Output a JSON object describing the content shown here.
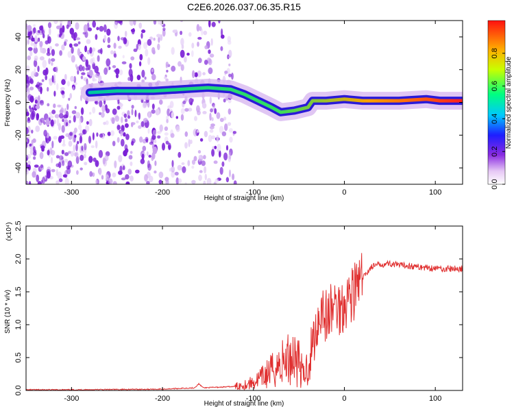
{
  "figure": {
    "title": "C2E6.2026.037.06.35.R15"
  },
  "chart_data": [
    {
      "type": "heatmap",
      "xlabel": "Height of straight line (km)",
      "ylabel": "Frequency (Hz)",
      "xlim": [
        -350,
        130
      ],
      "ylim": [
        -50,
        50
      ],
      "xticks": [
        -300,
        -200,
        -100,
        0,
        100
      ],
      "yticks": [
        -40,
        -20,
        0,
        20,
        40
      ],
      "colorbar": {
        "label": "Normalized spectral amplitude",
        "ticks": [
          0.0,
          0.2,
          0.4,
          0.6,
          0.8
        ],
        "range": [
          0,
          1
        ]
      },
      "ridge": [
        {
          "x": -280,
          "y": 6
        },
        {
          "x": -250,
          "y": 7
        },
        {
          "x": -210,
          "y": 7
        },
        {
          "x": -180,
          "y": 8
        },
        {
          "x": -150,
          "y": 9
        },
        {
          "x": -125,
          "y": 8
        },
        {
          "x": -110,
          "y": 5
        },
        {
          "x": -95,
          "y": 1
        },
        {
          "x": -80,
          "y": -3
        },
        {
          "x": -70,
          "y": -6
        },
        {
          "x": -55,
          "y": -5
        },
        {
          "x": -40,
          "y": -3
        },
        {
          "x": -35,
          "y": 1
        },
        {
          "x": -20,
          "y": 1
        },
        {
          "x": 0,
          "y": 2
        },
        {
          "x": 20,
          "y": 1
        },
        {
          "x": 60,
          "y": 1
        },
        {
          "x": 90,
          "y": 2
        },
        {
          "x": 105,
          "y": 1
        },
        {
          "x": 130,
          "y": 1
        }
      ]
    },
    {
      "type": "line",
      "xlabel": "Height of straight line (km)",
      "ylabel": "SNR (10 * v/v)",
      "scale_label": "(x10⁴)",
      "xlim": [
        -350,
        130
      ],
      "ylim": [
        0,
        2.5
      ],
      "xticks": [
        -300,
        -200,
        -100,
        0,
        100
      ],
      "yticks": [
        "0.0",
        "0.5",
        "1.0",
        "1.5",
        "2.0",
        "2.5"
      ],
      "series": [
        {
          "name": "SNR",
          "color": "#e03030",
          "points": [
            {
              "x": -350,
              "y": 0.01
            },
            {
              "x": -300,
              "y": 0.01
            },
            {
              "x": -250,
              "y": 0.015
            },
            {
              "x": -200,
              "y": 0.02
            },
            {
              "x": -165,
              "y": 0.04
            },
            {
              "x": -160,
              "y": 0.1
            },
            {
              "x": -155,
              "y": 0.04
            },
            {
              "x": -120,
              "y": 0.06
            },
            {
              "x": -100,
              "y": 0.12
            },
            {
              "x": -90,
              "y": 0.2
            },
            {
              "x": -80,
              "y": 0.3
            },
            {
              "x": -70,
              "y": 0.4
            },
            {
              "x": -60,
              "y": 0.5
            },
            {
              "x": -55,
              "y": 0.55
            },
            {
              "x": -50,
              "y": 0.45
            },
            {
              "x": -45,
              "y": 0.2
            },
            {
              "x": -40,
              "y": 0.4
            },
            {
              "x": -35,
              "y": 0.7
            },
            {
              "x": -30,
              "y": 1.0
            },
            {
              "x": -25,
              "y": 1.3
            },
            {
              "x": -20,
              "y": 1.1
            },
            {
              "x": -15,
              "y": 1.2
            },
            {
              "x": -10,
              "y": 1.3
            },
            {
              "x": -5,
              "y": 1.25
            },
            {
              "x": 0,
              "y": 1.35
            },
            {
              "x": 5,
              "y": 1.45
            },
            {
              "x": 10,
              "y": 1.5
            },
            {
              "x": 15,
              "y": 1.6
            },
            {
              "x": 20,
              "y": 1.7
            },
            {
              "x": 25,
              "y": 1.8
            },
            {
              "x": 30,
              "y": 1.88
            },
            {
              "x": 40,
              "y": 1.92
            },
            {
              "x": 50,
              "y": 1.93
            },
            {
              "x": 60,
              "y": 1.9
            },
            {
              "x": 70,
              "y": 1.9
            },
            {
              "x": 80,
              "y": 1.88
            },
            {
              "x": 90,
              "y": 1.87
            },
            {
              "x": 100,
              "y": 1.86
            },
            {
              "x": 110,
              "y": 1.85
            },
            {
              "x": 120,
              "y": 1.85
            },
            {
              "x": 130,
              "y": 1.85
            }
          ]
        }
      ]
    }
  ]
}
